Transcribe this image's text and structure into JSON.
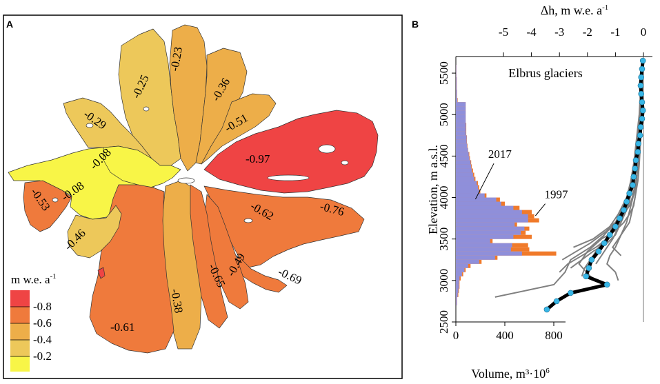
{
  "panels": {
    "a": {
      "letter": "A"
    },
    "b": {
      "letter": "B"
    }
  },
  "colors": {
    "c_08": "#ef4444",
    "c_06": "#ef7a3c",
    "c_04": "#edae49",
    "c_02": "#edc85a",
    "c_00": "#f8f547",
    "hist_2017": "#8f8fda",
    "hist_1997": "#f07a2a",
    "profile_individual": "#808080",
    "profile_mean": "#000000",
    "marker": "#38b6e6"
  },
  "map": {
    "legend_title": "m w.e. a",
    "legend_exp": "-1",
    "legend_items": [
      "-0.8",
      "-0.6",
      "-0.4",
      "-0.2"
    ],
    "labels": [
      "-0.23",
      "-0.25",
      "-0.36",
      "-0.29",
      "-0.51",
      "-0.08",
      "-0.97",
      "-0.08",
      "-0.53",
      "-0.76",
      "-0.62",
      "-0.46",
      "-0.49",
      "-0.65",
      "-0.69",
      "-0.38",
      "-0.61"
    ]
  },
  "chart_data": {
    "type": "line",
    "title": "Elbrus glaciers",
    "ylabel": "Elevation, m a.s.l.",
    "ylim": [
      2500,
      5700
    ],
    "yticks": [
      "2500",
      "3000",
      "3500",
      "4000",
      "4500",
      "5000",
      "5500"
    ],
    "top_axis": {
      "label": "Δh, m w.e. a",
      "label_exp": "-1",
      "range": [
        -5.9,
        0.2
      ],
      "ticks": [
        "-5",
        "-4",
        "-3",
        "-2",
        "-1",
        "0"
      ]
    },
    "bottom_axis": {
      "label": "Volume, m³·10",
      "label_exp": "6",
      "range": [
        0,
        1800
      ],
      "ticks": [
        "0",
        "400",
        "800"
      ]
    },
    "annotations": [
      {
        "text": "2017",
        "x": 185,
        "y": 4300,
        "series": "2017"
      },
      {
        "text": "1997",
        "x": 650,
        "y": 3860,
        "series": "1997"
      }
    ],
    "histogram": {
      "bin_width_m": 50,
      "series": [
        {
          "name": "1997",
          "bins": [
            [
              2650,
              0
            ],
            [
              2700,
              10
            ],
            [
              2750,
              10
            ],
            [
              2800,
              20
            ],
            [
              2850,
              25
            ],
            [
              2900,
              30
            ],
            [
              2950,
              30
            ],
            [
              3000,
              40
            ],
            [
              3050,
              60
            ],
            [
              3100,
              80
            ],
            [
              3150,
              120
            ],
            [
              3200,
              210
            ],
            [
              3250,
              340
            ],
            [
              3300,
              820
            ],
            [
              3350,
              600
            ],
            [
              3400,
              590
            ],
            [
              3450,
              300
            ],
            [
              3500,
              620
            ],
            [
              3550,
              570
            ],
            [
              3600,
              600
            ],
            [
              3650,
              500
            ],
            [
              3700,
              680
            ],
            [
              3750,
              640
            ],
            [
              3800,
              620
            ],
            [
              3850,
              520
            ],
            [
              3900,
              400
            ],
            [
              3950,
              360
            ],
            [
              4000,
              250
            ],
            [
              4050,
              200
            ],
            [
              4100,
              190
            ],
            [
              4150,
              180
            ],
            [
              4200,
              160
            ],
            [
              4250,
              150
            ],
            [
              4300,
              140
            ],
            [
              4350,
              130
            ],
            [
              4400,
              125
            ],
            [
              4450,
              115
            ],
            [
              4500,
              110
            ],
            [
              4550,
              100
            ],
            [
              4600,
              95
            ],
            [
              4650,
              90
            ],
            [
              4700,
              90
            ],
            [
              4750,
              85
            ],
            [
              4800,
              85
            ],
            [
              4850,
              85
            ],
            [
              4900,
              80
            ],
            [
              4950,
              80
            ],
            [
              5000,
              80
            ],
            [
              5050,
              80
            ],
            [
              5100,
              80
            ],
            [
              5150,
              15
            ],
            [
              5200,
              10
            ],
            [
              5250,
              10
            ],
            [
              5300,
              8
            ],
            [
              5350,
              8
            ],
            [
              5400,
              8
            ],
            [
              5450,
              5
            ],
            [
              5500,
              5
            ],
            [
              5550,
              5
            ]
          ]
        },
        {
          "name": "2017",
          "bins": [
            [
              2650,
              0
            ],
            [
              2700,
              8
            ],
            [
              2750,
              8
            ],
            [
              2800,
              15
            ],
            [
              2850,
              20
            ],
            [
              2900,
              25
            ],
            [
              2950,
              25
            ],
            [
              3000,
              30
            ],
            [
              3050,
              50
            ],
            [
              3100,
              70
            ],
            [
              3150,
              100
            ],
            [
              3200,
              190
            ],
            [
              3250,
              320
            ],
            [
              3300,
              540
            ],
            [
              3350,
              450
            ],
            [
              3400,
              460
            ],
            [
              3450,
              280
            ],
            [
              3500,
              470
            ],
            [
              3550,
              530
            ],
            [
              3600,
              560
            ],
            [
              3650,
              480
            ],
            [
              3700,
              590
            ],
            [
              3750,
              590
            ],
            [
              3800,
              540
            ],
            [
              3850,
              470
            ],
            [
              3900,
              370
            ],
            [
              3950,
              330
            ],
            [
              4000,
              235
            ],
            [
              4050,
              190
            ],
            [
              4100,
              180
            ],
            [
              4150,
              170
            ],
            [
              4200,
              150
            ],
            [
              4250,
              140
            ],
            [
              4300,
              130
            ],
            [
              4350,
              125
            ],
            [
              4400,
              120
            ],
            [
              4450,
              110
            ],
            [
              4500,
              105
            ],
            [
              4550,
              98
            ],
            [
              4600,
              92
            ],
            [
              4650,
              88
            ],
            [
              4700,
              88
            ],
            [
              4750,
              82
            ],
            [
              4800,
              82
            ],
            [
              4850,
              82
            ],
            [
              4900,
              80
            ],
            [
              4950,
              80
            ],
            [
              5000,
              80
            ],
            [
              5050,
              80
            ],
            [
              5100,
              80
            ],
            [
              5150,
              12
            ],
            [
              5200,
              8
            ],
            [
              5250,
              8
            ],
            [
              5300,
              6
            ],
            [
              5350,
              6
            ],
            [
              5400,
              6
            ],
            [
              5450,
              4
            ],
            [
              5500,
              4
            ],
            [
              5550,
              4
            ]
          ]
        }
      ]
    },
    "mean_profile": {
      "elev": [
        2650,
        2750,
        2850,
        2950,
        3050,
        3150,
        3250,
        3350,
        3450,
        3550,
        3650,
        3750,
        3850,
        3950,
        4050,
        4150,
        4250,
        4350,
        4450,
        4550,
        4650,
        4750,
        4850,
        4950,
        5050,
        5150,
        5250,
        5350,
        5450,
        5550,
        5650
      ],
      "dh": [
        -3.45,
        -3.1,
        -2.6,
        -1.3,
        -2.05,
        -1.95,
        -1.85,
        -1.6,
        -1.4,
        -1.2,
        -1.0,
        -0.85,
        -0.7,
        -0.6,
        -0.5,
        -0.38,
        -0.35,
        -0.3,
        -0.27,
        -0.2,
        -0.18,
        -0.12,
        -0.1,
        -0.05,
        -0.02,
        -0.05,
        -0.08,
        -0.1,
        -0.08,
        -0.05,
        -0.02
      ]
    },
    "individual_profiles": [
      {
        "elev": [
          2800,
          2950,
          3100,
          3250,
          3400,
          3550,
          3700,
          3900,
          4100,
          4400,
          4700,
          5000,
          5300,
          5600
        ],
        "dh": [
          -5.3,
          -3.2,
          -2.8,
          -2.6,
          -1.9,
          -1.4,
          -1.0,
          -0.7,
          -0.5,
          -0.35,
          -0.25,
          -0.15,
          -0.1,
          -0.05
        ]
      },
      {
        "elev": [
          2950,
          3050,
          3200,
          3350,
          3500,
          3650,
          3800,
          4000,
          4200,
          4500,
          4800,
          5100,
          5400
        ],
        "dh": [
          -1.4,
          -1.9,
          -2.3,
          -2.0,
          -1.5,
          -1.2,
          -0.9,
          -0.6,
          -0.45,
          -0.3,
          -0.2,
          -0.1,
          -0.05
        ]
      },
      {
        "elev": [
          3150,
          3250,
          3350,
          3450,
          3550,
          3700,
          3850,
          4000,
          4200,
          4500,
          4800,
          5100,
          5400
        ],
        "dh": [
          -2.6,
          -2.2,
          -1.8,
          -1.3,
          -1.0,
          -0.8,
          -0.6,
          -0.5,
          -0.35,
          -0.25,
          -0.15,
          -0.1,
          -0.05
        ]
      },
      {
        "elev": [
          3300,
          3400,
          3500,
          3600,
          3700,
          3850,
          4000,
          4200,
          4500,
          4800,
          5100
        ],
        "dh": [
          -0.8,
          -1.1,
          -0.9,
          -0.7,
          -0.5,
          -0.4,
          -0.3,
          -0.25,
          -0.2,
          -0.1,
          -0.05
        ]
      },
      {
        "elev": [
          3000,
          3100,
          3200,
          3300,
          3400,
          3550,
          3700,
          3900,
          4100,
          4400,
          4700,
          5000
        ],
        "dh": [
          -0.9,
          -1.0,
          -1.3,
          -1.2,
          -1.0,
          -0.8,
          -0.6,
          -0.45,
          -0.3,
          -0.2,
          -0.1,
          -0.05
        ]
      },
      {
        "elev": [
          3250,
          3350,
          3450,
          3550,
          3650,
          3800,
          4000,
          4200,
          4500,
          4800,
          5100,
          5400
        ],
        "dh": [
          -2.9,
          -2.4,
          -1.9,
          -1.5,
          -1.1,
          -0.8,
          -0.55,
          -0.4,
          -0.25,
          -0.15,
          -0.1,
          -0.05
        ]
      },
      {
        "elev": [
          3400,
          3500,
          3600,
          3700,
          3800,
          3900,
          4100,
          4300,
          4600,
          4900,
          5200
        ],
        "dh": [
          -2.5,
          -1.8,
          -1.4,
          -1.0,
          -0.8,
          -0.6,
          -0.4,
          -0.3,
          -0.2,
          -0.1,
          -0.05
        ]
      },
      {
        "elev": [
          3100,
          3200,
          3300,
          3400,
          3500,
          3650,
          3800,
          4000,
          4300,
          4600,
          4900,
          5200,
          5500
        ],
        "dh": [
          -3.0,
          -2.7,
          -2.2,
          -1.7,
          -1.3,
          -0.95,
          -0.7,
          -0.5,
          -0.3,
          -0.2,
          -0.12,
          -0.08,
          -0.04
        ]
      },
      {
        "elev": [
          3500,
          3600,
          3700,
          3800,
          3900,
          4000,
          4200,
          4400,
          4700,
          5000,
          5300
        ],
        "dh": [
          -1.5,
          -1.0,
          -0.7,
          -0.5,
          -0.35,
          -0.3,
          -0.2,
          -0.15,
          -0.1,
          -0.05,
          -0.02
        ]
      },
      {
        "elev": [
          3200,
          3300,
          3400,
          3500,
          3600,
          3750,
          3900,
          4100,
          4400,
          4700,
          5000,
          5300,
          5600
        ],
        "dh": [
          -1.7,
          -1.5,
          -1.3,
          -1.1,
          -0.95,
          -0.75,
          -0.55,
          -0.4,
          -0.25,
          -0.15,
          -0.1,
          -0.05,
          -0.02
        ]
      },
      {
        "elev": [
          3050,
          3150,
          3250,
          3400,
          3550,
          3700,
          3850,
          4050,
          4300,
          4600,
          4900,
          5200
        ],
        "dh": [
          -2.2,
          -2.1,
          -1.9,
          -1.6,
          -1.2,
          -0.9,
          -0.65,
          -0.45,
          -0.3,
          -0.18,
          -0.1,
          -0.05
        ]
      },
      {
        "elev": [
          3600,
          3700,
          3800,
          3900,
          4000,
          4150,
          4300,
          4500,
          4800,
          5100,
          5400
        ],
        "dh": [
          -1.2,
          -0.9,
          -0.7,
          -0.5,
          -0.4,
          -0.3,
          -0.22,
          -0.15,
          -0.1,
          -0.05,
          -0.02
        ]
      }
    ]
  }
}
